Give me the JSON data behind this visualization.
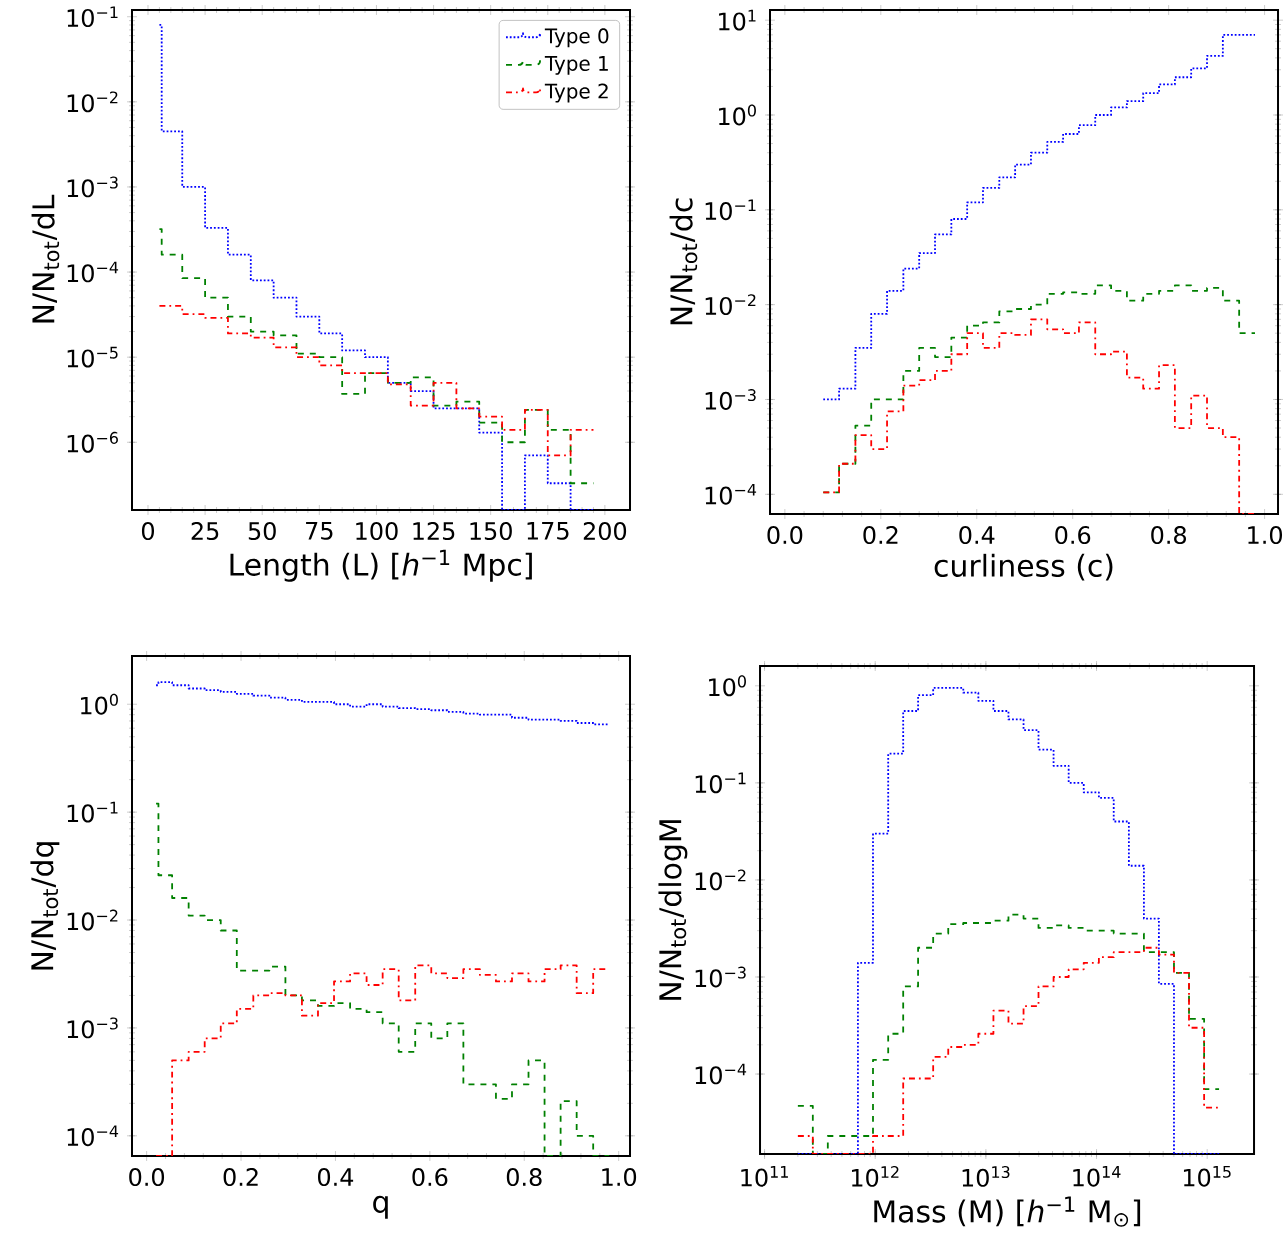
{
  "chart_data": [
    {
      "type": "histogram",
      "xlabel": "Length (L) [*h*$^{−1}$ Mpc]",
      "ylabel": "N/N$_{tot}$/dL",
      "log": "y",
      "legend": "top right",
      "bins": [
        5,
        6,
        15,
        25,
        35,
        45,
        55,
        65,
        75,
        85,
        95,
        105,
        115,
        125,
        135,
        145,
        155,
        165,
        175,
        185,
        195
      ],
      "xlim": [
        -7,
        211
      ],
      "xticks": [
        0,
        25,
        50,
        75,
        100,
        125,
        150,
        175,
        200
      ],
      "ylim": [
        1.6e-07,
        0.12
      ],
      "yticks": [
        {
          "value": 1e-06,
          "label": "10$^{−6}$"
        },
        {
          "value": 1e-05,
          "label": "10$^{−5}$"
        },
        {
          "value": 0.0001,
          "label": "10$^{−4}$"
        },
        {
          "value": 0.001,
          "label": "10$^{−3}$"
        },
        {
          "value": 0.01,
          "label": "10$^{−2}$"
        },
        {
          "value": 0.1,
          "label": "10$^{−1}$"
        }
      ],
      "series": [
        {
          "name": "Type 0",
          "color": "#0000ff",
          "line_style": "dotted",
          "values": [
            0.08,
            0.0045,
            0.001,
            0.00033,
            0.00016,
            8e-05,
            5e-05,
            3e-05,
            1.9e-05,
            1.2e-05,
            1e-05,
            5e-06,
            4e-06,
            2.5e-06,
            2.5e-06,
            1.3e-06,
            null,
            7e-07,
            3.3e-07,
            null
          ]
        },
        {
          "name": "Type 1",
          "color": "#008000",
          "line_style": "dashed",
          "values": [
            0.00032,
            0.00016,
            8.5e-05,
            5e-05,
            3e-05,
            2e-05,
            1.8e-05,
            1.1e-05,
            1e-05,
            3.7e-06,
            6.5e-06,
            5e-06,
            5.8e-06,
            2.7e-06,
            3e-06,
            1.7e-06,
            1e-06,
            2.4e-06,
            1.4e-06,
            3.3e-07
          ]
        },
        {
          "name": "Type 2",
          "color": "#ff0000",
          "line_style": "dashdot",
          "values": [
            4e-05,
            4e-05,
            3.2e-05,
            2.9e-05,
            1.9e-05,
            1.7e-05,
            1.3e-05,
            1e-05,
            8e-06,
            6.5e-06,
            6.5e-06,
            4.8e-06,
            2.7e-06,
            5e-06,
            2.5e-06,
            2e-06,
            1.4e-06,
            2.4e-06,
            7e-07,
            1.4e-06
          ]
        }
      ]
    },
    {
      "type": "histogram",
      "xlabel": "curliness (c)",
      "ylabel": "N/N$_{tot}$/dc",
      "log": "y",
      "bins": [
        0.08,
        0.113,
        0.147,
        0.18,
        0.213,
        0.247,
        0.28,
        0.313,
        0.347,
        0.38,
        0.413,
        0.447,
        0.48,
        0.513,
        0.547,
        0.58,
        0.613,
        0.647,
        0.68,
        0.713,
        0.747,
        0.78,
        0.813,
        0.847,
        0.88,
        0.913,
        0.947,
        0.98
      ],
      "xlim": [
        -0.031,
        1.028
      ],
      "xticks": [
        {
          "value": 0,
          "label": "0.0"
        },
        0.2,
        0.4,
        0.6,
        0.8,
        {
          "value": 1,
          "label": "1.0"
        }
      ],
      "ylim": [
        6.2e-05,
        12.8
      ],
      "yticks": [
        {
          "value": 0.0001,
          "label": "10$^{−4}$"
        },
        {
          "value": 0.001,
          "label": "10$^{−3}$"
        },
        {
          "value": 0.01,
          "label": "10$^{−2}$"
        },
        {
          "value": 0.1,
          "label": "10$^{−1}$"
        },
        {
          "value": 1,
          "label": "10$^{0}$"
        },
        {
          "value": 10,
          "label": "10$^{1}$"
        }
      ],
      "series": [
        {
          "color": "#0000ff",
          "line_style": "dotted",
          "values": [
            0.001,
            0.0013,
            0.0035,
            0.008,
            0.014,
            0.024,
            0.035,
            0.055,
            0.08,
            0.12,
            0.17,
            0.22,
            0.3,
            0.4,
            0.52,
            0.63,
            0.78,
            1.0,
            1.2,
            1.4,
            1.7,
            2.1,
            2.5,
            3.1,
            4.2,
            7,
            7
          ]
        },
        {
          "color": "#008000",
          "line_style": "dashed",
          "values": [
            0.000105,
            0.00021,
            0.00053,
            0.001,
            0.001,
            0.002,
            0.0035,
            0.0028,
            0.0045,
            0.006,
            0.0065,
            0.0085,
            0.009,
            0.01,
            0.013,
            0.0135,
            0.013,
            0.016,
            0.014,
            0.011,
            0.013,
            0.014,
            0.016,
            0.014,
            0.015,
            0.011,
            0.005
          ]
        },
        {
          "color": "#ff0000",
          "line_style": "dashdot",
          "values": [
            0.000105,
            0.00021,
            0.00042,
            0.0003,
            0.00075,
            0.0014,
            0.0016,
            0.002,
            0.003,
            0.005,
            0.0035,
            0.005,
            0.0048,
            0.007,
            0.0055,
            0.005,
            0.0065,
            0.003,
            0.0032,
            0.0017,
            0.0013,
            0.0023,
            0.0005,
            0.0011,
            0.0005,
            0.0004,
            null
          ]
        }
      ]
    },
    {
      "type": "histogram",
      "xlabel": "q",
      "ylabel": "N/N$_{tot}$/dq",
      "log": "y",
      "bins": [
        0.02,
        0.025,
        0.054,
        0.089,
        0.123,
        0.157,
        0.191,
        0.226,
        0.26,
        0.294,
        0.329,
        0.363,
        0.397,
        0.431,
        0.466,
        0.5,
        0.534,
        0.569,
        0.603,
        0.637,
        0.671,
        0.706,
        0.74,
        0.774,
        0.809,
        0.843,
        0.877,
        0.911,
        0.946,
        0.98
      ],
      "xlim": [
        -0.031,
        1.024
      ],
      "xticks": [
        {
          "value": 0,
          "label": "0.0"
        },
        0.2,
        0.4,
        0.6,
        0.8,
        {
          "value": 1,
          "label": "1.0"
        }
      ],
      "ylim": [
        6.5e-05,
        2.8
      ],
      "yticks": [
        {
          "value": 0.0001,
          "label": "10$^{−4}$"
        },
        {
          "value": 0.001,
          "label": "10$^{−3}$"
        },
        {
          "value": 0.01,
          "label": "10$^{−2}$"
        },
        {
          "value": 0.1,
          "label": "10$^{−1}$"
        },
        {
          "value": 1,
          "label": "10$^{0}$"
        }
      ],
      "series": [
        {
          "color": "#0000ff",
          "line_style": "dotted",
          "values": [
            1.5,
            1.6,
            1.5,
            1.4,
            1.35,
            1.3,
            1.25,
            1.2,
            1.15,
            1.1,
            1.05,
            1.05,
            1.0,
            0.95,
            1.0,
            0.95,
            0.92,
            0.9,
            0.88,
            0.85,
            0.82,
            0.8,
            0.8,
            0.75,
            0.72,
            0.72,
            0.7,
            0.67,
            0.65
          ]
        },
        {
          "color": "#008000",
          "line_style": "dashed",
          "values": [
            0.12,
            0.026,
            0.016,
            0.011,
            0.01,
            0.008,
            0.0034,
            0.0034,
            0.0037,
            0.002,
            0.0018,
            0.0016,
            0.0017,
            0.0015,
            0.0014,
            0.0011,
            0.0006,
            0.0011,
            0.0008,
            0.0011,
            0.0003,
            0.0003,
            0.00022,
            0.0003,
            0.0005,
            null,
            0.00021,
            0.0001,
            null
          ]
        },
        {
          "color": "#ff0000",
          "line_style": "dashdot",
          "values": [
            null,
            null,
            0.0005,
            0.0006,
            0.0008,
            0.0011,
            0.0015,
            0.002,
            0.0021,
            0.002,
            0.0013,
            0.0017,
            0.0027,
            0.0032,
            0.0025,
            0.0035,
            0.0018,
            0.0038,
            0.0032,
            0.0029,
            0.0035,
            0.0031,
            0.0027,
            0.0032,
            0.0027,
            0.0035,
            0.0038,
            0.0021,
            0.0035
          ]
        }
      ]
    },
    {
      "type": "histogram",
      "xlabel": "Mass (M) [*h*$^{−1}$ M$_{⊙}$]",
      "ylabel": "N/N$_{tot}$/dlogM",
      "log": "xy",
      "bins": [
        200000000000.0,
        273000000000.0,
        373000000000.0,
        511000000000.0,
        698000000000.0,
        955000000000.0,
        1310000000000.0,
        1790000000000.0,
        2440000000000.0,
        3340000000000.0,
        4570000000000.0,
        6250000000000.0,
        8550000000000.0,
        11700000000000.0,
        16000000000000.0,
        21900000000000.0,
        29900000000000.0,
        40900000000000.0,
        56000000000000.0,
        76600000000000.0,
        105000000000000.0,
        143000000000000.0,
        196000000000000.0,
        268000000000000.0,
        366000000000000.0,
        501000000000000.0,
        685000000000000.0,
        938000000000000.0,
        1280000000000000.0
      ],
      "xlim": [
        91000000000.0,
        2650000000000000.0
      ],
      "xticks": [
        {
          "value": 100000000000.0,
          "label": "10$^{11}$"
        },
        {
          "value": 1000000000000.0,
          "label": "10$^{12}$"
        },
        {
          "value": 10000000000000.0,
          "label": "10$^{13}$"
        },
        {
          "value": 100000000000000.0,
          "label": "10$^{14}$"
        },
        {
          "value": 1000000000000000.0,
          "label": "10$^{15}$"
        }
      ],
      "ylim": [
        1.5e-05,
        1.6
      ],
      "yticks": [
        {
          "value": 0.0001,
          "label": "10$^{−4}$"
        },
        {
          "value": 0.001,
          "label": "10$^{−3}$"
        },
        {
          "value": 0.01,
          "label": "10$^{−2}$"
        },
        {
          "value": 0.1,
          "label": "10$^{−1}$"
        },
        {
          "value": 1,
          "label": "10$^{0}$"
        }
      ],
      "series": [
        {
          "color": "#0000ff",
          "line_style": "dotted",
          "values": [
            null,
            null,
            null,
            null,
            0.0014,
            0.03,
            0.2,
            0.55,
            0.8,
            0.95,
            0.95,
            0.85,
            0.7,
            0.55,
            0.45,
            0.35,
            0.22,
            0.15,
            0.1,
            0.08,
            0.07,
            0.04,
            0.014,
            0.004,
            0.00085,
            null,
            null,
            null
          ]
        },
        {
          "color": "#008000",
          "line_style": "dashed",
          "values": [
            4.7e-05,
            null,
            2.3e-05,
            2.3e-05,
            2.3e-05,
            0.00014,
            0.00026,
            0.0008,
            0.002,
            0.0028,
            0.0035,
            0.0036,
            0.0036,
            0.0038,
            0.0044,
            0.004,
            0.0032,
            0.0034,
            0.0032,
            0.003,
            0.003,
            0.0028,
            0.0028,
            0.0018,
            0.0018,
            0.0011,
            0.00037,
            7e-05
          ]
        },
        {
          "color": "#ff0000",
          "line_style": "dashdot",
          "values": [
            2.3e-05,
            null,
            null,
            null,
            null,
            2.3e-05,
            2.3e-05,
            9e-05,
            9e-05,
            0.00015,
            0.00019,
            0.0002,
            0.00026,
            0.00045,
            0.00033,
            0.0005,
            0.0008,
            0.001,
            0.0012,
            0.0014,
            0.0016,
            0.0018,
            0.0018,
            0.002,
            0.0017,
            0.0011,
            0.0003,
            4.5e-05
          ]
        }
      ]
    }
  ]
}
